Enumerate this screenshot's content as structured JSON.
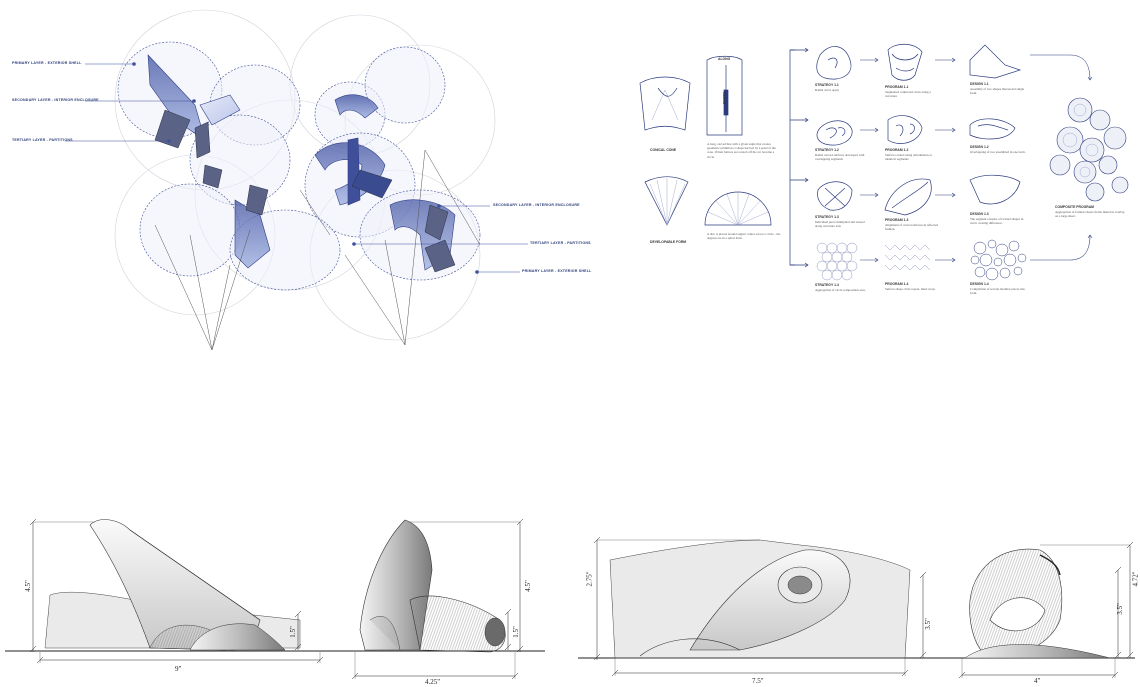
{
  "axon_labels": {
    "primary_exterior_left": "PRIMARY LAYER - EXTERIOR SHELL",
    "secondary_interior_left": "SECONDARY LAYER - INTERIOR ENCLOSURE",
    "tertiary_partitions_left": "TERTIARY LAYER - PARTITIONS",
    "secondary_interior_right": "SECONDARY LAYER - INTERIOR ENCLOSURE",
    "tertiary_partitions_right": "TERTIARY LAYER - PARTITIONS",
    "primary_exterior_right": "PRIMARY LAYER - EXTERIOR SHELL"
  },
  "process": {
    "conical_cone_label": "CONICAL CONE",
    "developable_form_label": "DEVELOPABLE FORM",
    "top_label": "ALONG",
    "side_label": "ALONG",
    "conical_text": "A long, curved line with a given angle that creates geometric primitives a shape derived by a point of the cone. If their helices are rotated off the arc become a circle.",
    "developable_text": "A disc is placed around angles' center across a circle - the degrees are in a spiral form.",
    "rows": [
      {
        "strategy": "STRATEGY 1.1",
        "strategy_text": "Radial curve apply",
        "program": "PROGRAM 1.1",
        "program_text": "Segmented connected circle along a curvature",
        "design": "DESIGN 1.1",
        "design_text": "Assembly of two shapes intersected single form."
      },
      {
        "strategy": "STRATEGY 1.2",
        "strategy_text": "Radial curved surfaces developed with overlapping segments",
        "program": "PROGRAM 1.2",
        "program_text": "Surface rotated along deformation at identical segments",
        "design": "DESIGN 1.2",
        "design_text": "Overlapping of two assembled in one form."
      },
      {
        "strategy": "STRATEGY 1.3",
        "strategy_text": "Individual piece multiplied and rotated along curvature axis",
        "program": "PROGRAM 1.3",
        "program_text": "Alignment of curved surfaces in reflected fashion.",
        "design": "DESIGN 1.3",
        "design_text": "The segment consists of twisted shapes in curve creating difference."
      },
      {
        "strategy": "STRATEGY 1.4",
        "strategy_text": "Aggregation of circle composition area.",
        "program": "PROGRAM 1.4",
        "program_text": "Surface shape circle repeat, sheet wrap.",
        "design": "DESIGN 1.4",
        "design_text": "Compilation of several modular pieces into form."
      }
    ],
    "composition_label": "COMPOSITE PROGRAM",
    "composition_text": "Aggregation of formed cluster forms linked in overlap on a large sheet."
  },
  "dims": {
    "d1_height": "4.5\"",
    "d1_small": "1.5\"",
    "d1_width": "9\"",
    "d2_height": "4.5\"",
    "d2_small": "1.5\"",
    "d2_width": "4.25\"",
    "d3_height": "2.75\"",
    "d3_small": "3.5\"",
    "d3_width": "7.5\"",
    "d4_height": "4.72\"",
    "d4_small": "3.5\"",
    "d4_width": "4\""
  },
  "colors": {
    "accent_blue": "#3f4f9a",
    "light_blue": "#c9d1ee",
    "line_gray": "#9aa0ad"
  }
}
